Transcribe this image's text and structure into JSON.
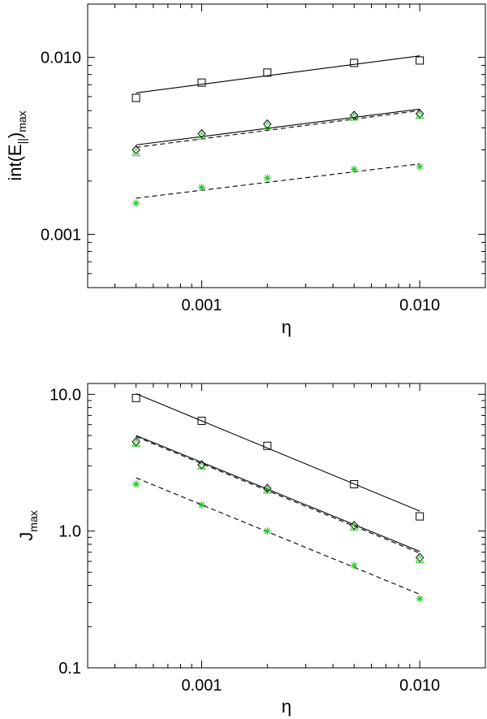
{
  "chart_data": [
    {
      "type": "scatter",
      "xscale": "log",
      "yscale": "log",
      "xlim": [
        0.0003,
        0.02
      ],
      "ylim": [
        0.0005,
        0.02
      ],
      "grid": false,
      "xlabel": "η",
      "ylabel_main": "int(E",
      "ylabel_sub": "||",
      "ylabel_close": ")",
      "ylabel_sub2": "max",
      "x_ticks": [
        {
          "value": 0.001,
          "label": "0.001"
        },
        {
          "value": 0.01,
          "label": "0.010"
        }
      ],
      "y_ticks": [
        {
          "value": 0.001,
          "label": "0.001"
        },
        {
          "value": 0.01,
          "label": "0.010"
        }
      ],
      "series": [
        {
          "marker": "square",
          "color": "#000000",
          "x": [
            0.0005,
            0.001,
            0.002,
            0.005,
            0.01
          ],
          "y": [
            0.0059,
            0.0072,
            0.0082,
            0.0093,
            0.0096
          ]
        },
        {
          "marker": "diamond",
          "color": "#000000",
          "x": [
            0.0005,
            0.001,
            0.002,
            0.005,
            0.01
          ],
          "y": [
            0.003,
            0.0037,
            0.0042,
            0.0047,
            0.0048
          ]
        },
        {
          "marker": "triangle",
          "color": "#22cc22",
          "x": [
            0.0005,
            0.001,
            0.002,
            0.005,
            0.01
          ],
          "y": [
            0.0029,
            0.0036,
            0.0041,
            0.0046,
            0.0047
          ]
        },
        {
          "marker": "asterisk",
          "color": "#22cc22",
          "x": [
            0.0005,
            0.001,
            0.002,
            0.005,
            0.01
          ],
          "y": [
            0.0015,
            0.00184,
            0.00208,
            0.00233,
            0.00241
          ]
        }
      ],
      "fits": [
        {
          "style": "solid",
          "x": [
            0.0005,
            0.01
          ],
          "y": [
            0.0063,
            0.0102
          ]
        },
        {
          "style": "solid",
          "x": [
            0.0005,
            0.01
          ],
          "y": [
            0.0032,
            0.0051
          ]
        },
        {
          "style": "dashed",
          "x": [
            0.0005,
            0.01
          ],
          "y": [
            0.0031,
            0.005
          ]
        },
        {
          "style": "dashed",
          "x": [
            0.0005,
            0.01
          ],
          "y": [
            0.0016,
            0.0025
          ]
        }
      ]
    },
    {
      "type": "scatter",
      "xscale": "log",
      "yscale": "log",
      "xlim": [
        0.0003,
        0.02
      ],
      "ylim": [
        0.1,
        12.0
      ],
      "grid": false,
      "xlabel": "η",
      "ylabel_main": "J",
      "ylabel_sub": "max",
      "x_ticks": [
        {
          "value": 0.001,
          "label": "0.001"
        },
        {
          "value": 0.01,
          "label": "0.010"
        }
      ],
      "y_ticks": [
        {
          "value": 0.1,
          "label": "0.1"
        },
        {
          "value": 1.0,
          "label": "1.0"
        },
        {
          "value": 10.0,
          "label": "10.0"
        }
      ],
      "series": [
        {
          "marker": "square",
          "color": "#000000",
          "x": [
            0.0005,
            0.001,
            0.002,
            0.005,
            0.01
          ],
          "y": [
            9.4,
            6.4,
            4.2,
            2.2,
            1.28
          ]
        },
        {
          "marker": "diamond",
          "color": "#000000",
          "x": [
            0.0005,
            0.001,
            0.002,
            0.005,
            0.01
          ],
          "y": [
            4.5,
            3.05,
            2.05,
            1.1,
            0.64
          ]
        },
        {
          "marker": "triangle",
          "color": "#22cc22",
          "x": [
            0.0005,
            0.001,
            0.002,
            0.005,
            0.01
          ],
          "y": [
            4.4,
            3.0,
            2.0,
            1.07,
            0.62
          ]
        },
        {
          "marker": "asterisk",
          "color": "#22cc22",
          "x": [
            0.0005,
            0.001,
            0.002,
            0.005,
            0.01
          ],
          "y": [
            2.2,
            1.55,
            1.0,
            0.56,
            0.32
          ]
        }
      ],
      "fits": [
        {
          "style": "solid",
          "x": [
            0.0005,
            0.01
          ],
          "y": [
            10.1,
            1.4
          ]
        },
        {
          "style": "solid",
          "x": [
            0.0005,
            0.01
          ],
          "y": [
            5.0,
            0.71
          ]
        },
        {
          "style": "dashed",
          "x": [
            0.0005,
            0.01
          ],
          "y": [
            4.9,
            0.69
          ]
        },
        {
          "style": "dashed",
          "x": [
            0.0005,
            0.01
          ],
          "y": [
            2.45,
            0.345
          ]
        }
      ]
    }
  ]
}
